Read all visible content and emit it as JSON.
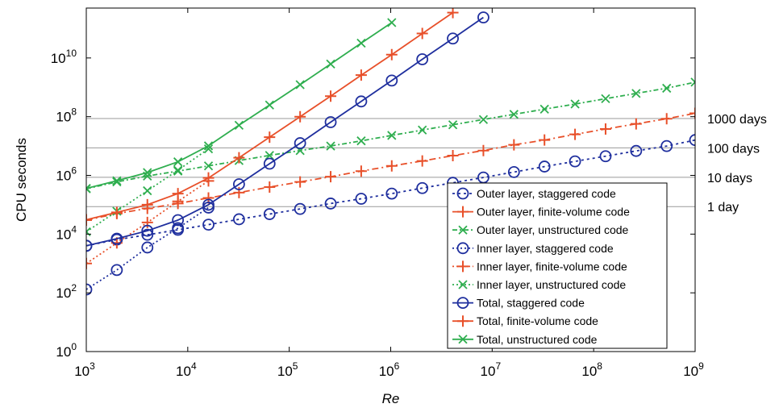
{
  "chart_data": {
    "type": "line",
    "title": "",
    "xlabel": "Re",
    "ylabel": "CPU seconds",
    "x_scale": "log",
    "y_scale": "log",
    "xlim": [
      1000,
      1000000000
    ],
    "ylim": [
      1,
      500000000000
    ],
    "grid": false,
    "legend_position": "bottom-right",
    "x_ticks": [
      {
        "value": 1000,
        "base": "10",
        "exp": "3"
      },
      {
        "value": 10000,
        "base": "10",
        "exp": "4"
      },
      {
        "value": 100000,
        "base": "10",
        "exp": "5"
      },
      {
        "value": 1000000,
        "base": "10",
        "exp": "6"
      },
      {
        "value": 10000000,
        "base": "10",
        "exp": "7"
      },
      {
        "value": 100000000,
        "base": "10",
        "exp": "8"
      },
      {
        "value": 1000000000,
        "base": "10",
        "exp": "9"
      }
    ],
    "y_ticks": [
      {
        "value": 1,
        "base": "10",
        "exp": "0"
      },
      {
        "value": 100,
        "base": "10",
        "exp": "2"
      },
      {
        "value": 10000,
        "base": "10",
        "exp": "4"
      },
      {
        "value": 1000000,
        "base": "10",
        "exp": "6"
      },
      {
        "value": 100000000,
        "base": "10",
        "exp": "8"
      },
      {
        "value": 10000000000,
        "base": "10",
        "exp": "10"
      }
    ],
    "reference_lines": [
      {
        "label": "1 day",
        "value": 86400
      },
      {
        "label": "10 days",
        "value": 864000
      },
      {
        "label": "100 days",
        "value": 8640000
      },
      {
        "label": "1000 days",
        "value": 86400000
      }
    ],
    "series": [
      {
        "name": "Outer layer, staggered code",
        "color": "#1f2f9e",
        "dash": "3,4",
        "marker": "circle",
        "x": [
          1000,
          2000,
          4000,
          8000,
          16000,
          32000,
          64000,
          128000,
          256000,
          512000,
          1024000,
          2048000,
          4096000,
          8192000,
          16384000,
          32768000,
          65536000,
          131072000,
          262144000,
          524288000,
          1000000000
        ],
        "y": [
          4000,
          6500,
          9500,
          14000,
          21000,
          32000,
          48000,
          72000,
          110000,
          160000,
          240000,
          370000,
          560000,
          850000,
          1300000,
          2000000,
          3000000,
          4500000,
          6800000,
          10000000,
          16000000
        ]
      },
      {
        "name": "Outer layer, finite-volume code",
        "color": "#e8502a",
        "dash": "8,4,2,4",
        "marker": "plus",
        "x": [
          1000,
          2000,
          4000,
          8000,
          16000,
          32000,
          64000,
          128000,
          256000,
          512000,
          1024000,
          2048000,
          4096000,
          8192000,
          16384000,
          32768000,
          65536000,
          131072000,
          262144000,
          524288000,
          1000000000
        ],
        "y": [
          30000,
          50000,
          75000,
          110000,
          170000,
          260000,
          400000,
          600000,
          900000,
          1400000,
          2100000,
          3100000,
          4700000,
          7000000,
          11000000,
          16000000,
          25000000,
          38000000,
          57000000,
          85000000,
          130000000
        ]
      },
      {
        "name": "Outer layer, unstructured code",
        "color": "#2fae4f",
        "dash": "6,3,2,3",
        "marker": "x",
        "x": [
          1000,
          2000,
          4000,
          8000,
          16000,
          32000,
          64000,
          128000,
          256000,
          512000,
          1024000,
          2048000,
          4096000,
          8192000,
          16384000,
          32768000,
          65536000,
          131072000,
          262144000,
          524288000,
          1000000000
        ],
        "y": [
          350000,
          600000,
          950000,
          1400000,
          2100000,
          3200000,
          4800000,
          7000000,
          10000000,
          15000000,
          23000000,
          35000000,
          53000000,
          80000000,
          120000000,
          180000000,
          270000000,
          410000000,
          620000000,
          930000000,
          1500000000
        ]
      },
      {
        "name": "Inner layer, staggered code",
        "color": "#1f2f9e",
        "dash": "2,3",
        "marker": "circle",
        "x": [
          1000,
          2000,
          4000,
          8000,
          16000
        ],
        "y": [
          130,
          600,
          3500,
          16000,
          80000
        ]
      },
      {
        "name": "Inner layer, finite-volume code",
        "color": "#e8502a",
        "dash": "2,3",
        "marker": "plus",
        "x": [
          1000,
          2000,
          4000,
          8000,
          16000
        ],
        "y": [
          1000,
          5000,
          25000,
          130000,
          650000
        ]
      },
      {
        "name": "Inner layer, unstructured code",
        "color": "#2fae4f",
        "dash": "2,3",
        "marker": "x",
        "x": [
          1000,
          2000,
          4000,
          8000,
          16000
        ],
        "y": [
          12000,
          60000,
          300000,
          1500000,
          8000000
        ]
      },
      {
        "name": "Total, staggered code",
        "color": "#1f2f9e",
        "dash": "",
        "marker": "circle",
        "x": [
          1000,
          2000,
          4000,
          8000,
          16000,
          32000,
          64000,
          128000,
          256000,
          512000,
          1024000,
          2048000,
          4096000,
          8192000
        ],
        "y": [
          4000,
          7000,
          13000,
          30000,
          100000,
          500000,
          2500000,
          12500000,
          65000000,
          330000000,
          1700000000,
          9000000000,
          46000000000,
          240000000000
        ]
      },
      {
        "name": "Total, finite-volume code",
        "color": "#e8502a",
        "dash": "",
        "marker": "plus",
        "x": [
          1000,
          2000,
          4000,
          8000,
          16000,
          32000,
          64000,
          128000,
          256000,
          512000,
          1024000,
          2048000,
          4096000
        ],
        "y": [
          31000,
          55000,
          100000,
          240000,
          820000,
          4000000,
          20000000,
          100000000,
          500000000,
          2600000000,
          13000000000,
          68000000000,
          350000000000
        ]
      },
      {
        "name": "Total, unstructured code",
        "color": "#2fae4f",
        "dash": "",
        "marker": "x",
        "x": [
          1000,
          2000,
          4000,
          8000,
          16000,
          32000,
          64000,
          128000,
          256000,
          512000,
          1024000
        ],
        "y": [
          360000,
          660000,
          1250000,
          2900000,
          10100000,
          51000000,
          250000000,
          1230000000,
          6200000000,
          32000000000,
          160000000000
        ]
      }
    ]
  }
}
